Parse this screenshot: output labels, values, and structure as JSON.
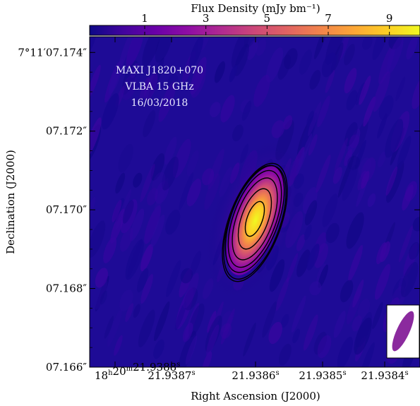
{
  "colorbar": {
    "label": "Flux  Density (mJy bm⁻¹)",
    "ticks": [
      {
        "value": 1,
        "label": "1"
      },
      {
        "value": 3,
        "label": "3"
      },
      {
        "value": 5,
        "label": "5"
      },
      {
        "value": 7,
        "label": "7"
      },
      {
        "value": 9,
        "label": "9"
      }
    ],
    "range": [
      -0.8,
      10.0
    ],
    "colormap": [
      "#0d0887",
      "#41049d",
      "#6a00a8",
      "#8f0da4",
      "#b12a90",
      "#cc4778",
      "#e16462",
      "#f2844b",
      "#fca636",
      "#fcce25",
      "#f0f921"
    ]
  },
  "annotation": {
    "line1": "MAXI J1820+070",
    "line2": "VLBA 15 GHz",
    "line3": "16/03/2018"
  },
  "axes": {
    "xlabel": "Right Ascension (J2000)",
    "ylabel": "Declination (J2000)"
  },
  "chart_data": {
    "type": "heatmap",
    "title": "",
    "colormap_name": "plasma",
    "background_level_mJy": 0.2,
    "source": {
      "ra_label": "21.93860s",
      "dec_arcsec": 7.16955,
      "peak_flux_mJy": 9.8,
      "position_angle_deg": 20
    },
    "contour_levels_fraction_of_peak": [
      0.08,
      0.14,
      0.22,
      0.34,
      0.5,
      0.7,
      0.88
    ],
    "beam": {
      "position_angle_deg": 25,
      "color": "#8b2a9e"
    },
    "x_ticks": [
      {
        "text": "18h20m21.9388s",
        "hh": "18",
        "mm": "20",
        "ss": "21.9388",
        "sep": "h",
        "sep2": "m",
        "sfx": "s"
      },
      {
        "text": "21.9387s",
        "ss": "21.9387",
        "sfx": "s"
      },
      {
        "text": "21.9386s",
        "ss": "21.9386",
        "sfx": "s"
      },
      {
        "text": "21.9385s",
        "ss": "21.9385",
        "sfx": "s"
      },
      {
        "text": "21.9384s",
        "ss": "21.9384",
        "sfx": "s"
      }
    ],
    "y_ticks": [
      {
        "value": 7.174,
        "label": "7°11′07.174″"
      },
      {
        "value": 7.172,
        "label": "07.172″"
      },
      {
        "value": 7.17,
        "label": "07.170″"
      },
      {
        "value": 7.168,
        "label": "07.168″"
      },
      {
        "value": 7.166,
        "label": "07.166″"
      }
    ],
    "ylim": [
      7.166,
      7.1744
    ]
  }
}
